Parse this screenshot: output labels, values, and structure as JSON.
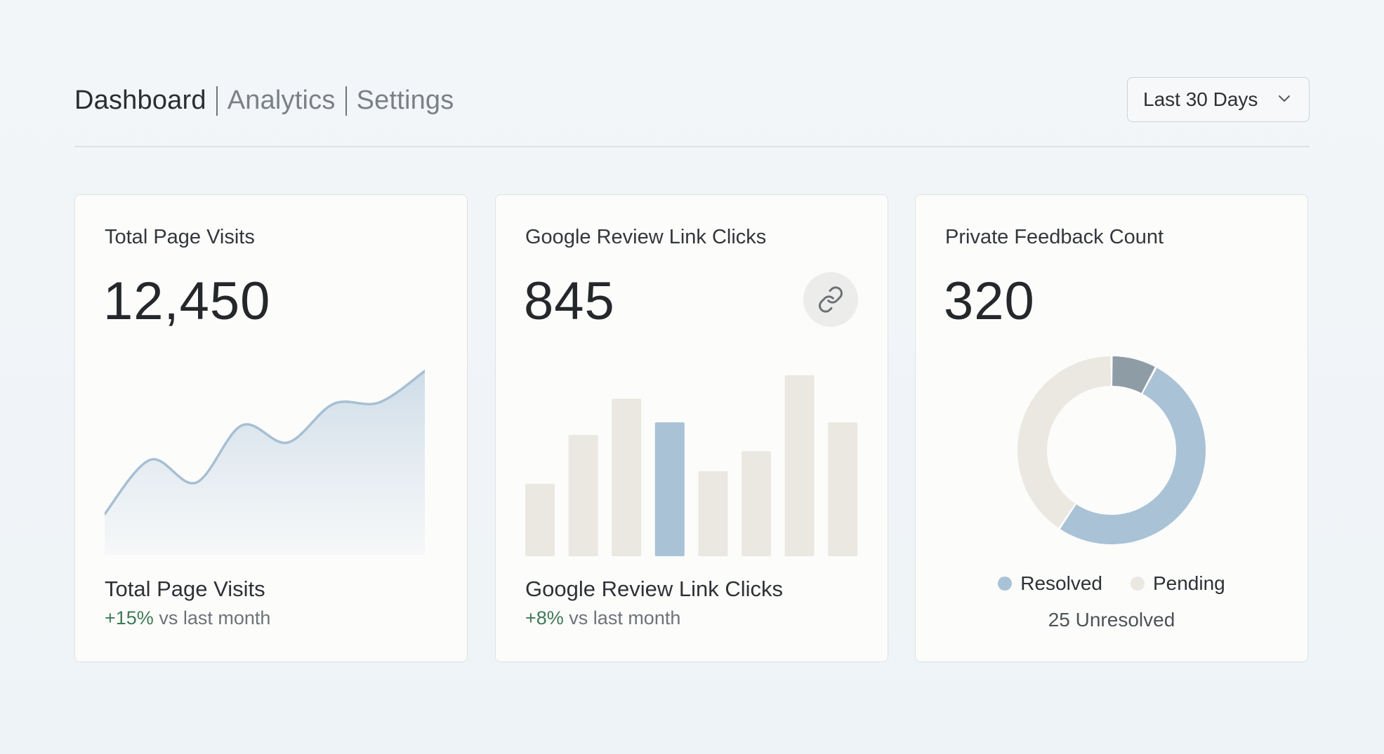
{
  "nav": {
    "items": [
      "Dashboard",
      "Analytics",
      "Settings"
    ],
    "active": "Dashboard"
  },
  "date_range": {
    "selected": "Last 30 Days"
  },
  "cards": [
    {
      "title": "Total Page Visits",
      "value": "12,450",
      "footer_title": "Total Page Visits",
      "change": "+15%",
      "change_suffix": " vs last month"
    },
    {
      "title": "Google Review Link Clicks",
      "value": "845",
      "icon": "link-icon",
      "footer_title": "Google Review Link Clicks",
      "change": "+8%",
      "change_suffix": " vs last month"
    },
    {
      "title": "Private Feedback Count",
      "value": "320",
      "legend": [
        {
          "label": "Resolved",
          "color": "#a9c2d6"
        },
        {
          "label": "Pending",
          "color": "#ebe8e2"
        }
      ],
      "unresolved": "25 Unresolved"
    }
  ],
  "colors": {
    "accent": "#a9c2d6",
    "line": "#a6bfd3",
    "bar": "#ebe8e2",
    "bar_highlight": "#a9c2d6",
    "donut_resolved": "#a9c2d6",
    "donut_pending": "#ebe8e2",
    "donut_unresolved": "#8e9ca6",
    "positive": "#3f7a56"
  },
  "chart_data": [
    {
      "type": "area",
      "values": [
        0.0,
        0.38,
        0.22,
        0.62,
        0.5,
        0.77,
        0.78,
        1.0
      ],
      "ylim": [
        0,
        1
      ]
    },
    {
      "type": "bar",
      "values": [
        0.4,
        0.67,
        0.87,
        0.74,
        0.47,
        0.58,
        1.0,
        0.74
      ],
      "highlight_index": 3,
      "ylim": [
        0,
        1
      ]
    },
    {
      "type": "pie",
      "labels": [
        "Unresolved",
        "Resolved",
        "Pending"
      ],
      "values": [
        25,
        165,
        130
      ],
      "colors": [
        "#8e9ca6",
        "#a9c2d6",
        "#ebe8e2"
      ]
    }
  ]
}
